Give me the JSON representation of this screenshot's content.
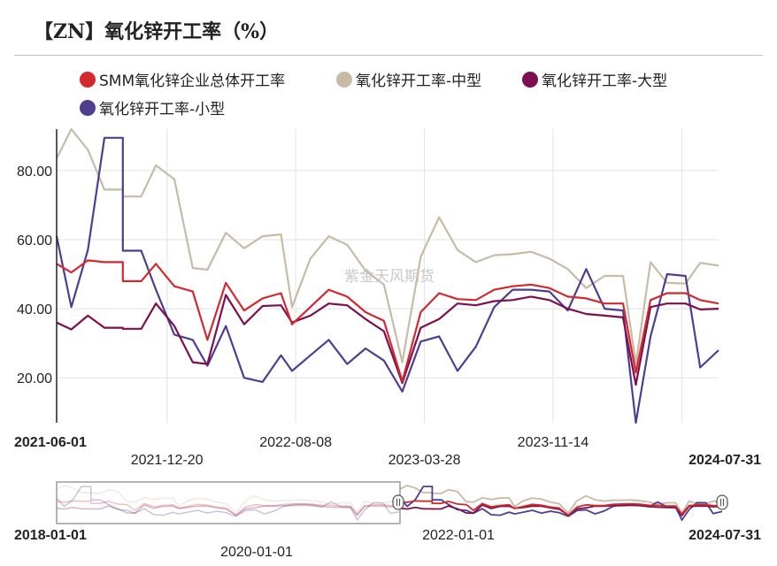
{
  "header": {
    "title": "【ZN】氧化锌开工率（%）"
  },
  "watermark": "紫金天风期货",
  "colors": {
    "total": "#d12a2e",
    "medium": "#c8bba6",
    "large": "#7e0e4f",
    "small": "#4f3d92",
    "grid": "#e2e2e2",
    "axis": "#222222",
    "navigator_frame": "#9b9b9b",
    "navigator_mask": "#ffffff"
  },
  "chart_data": {
    "type": "line",
    "x_ticks": [
      {
        "label": "2021-06-01",
        "index": 0,
        "bold": true
      },
      {
        "label": "2021-12-20",
        "index": 6,
        "bold": false
      },
      {
        "label": "2022-08-08",
        "index": 13,
        "bold": false
      },
      {
        "label": "2023-03-28",
        "index": 20,
        "bold": false
      },
      {
        "label": "2023-11-14",
        "index": 27,
        "bold": false
      },
      {
        "label": "2024-07-31",
        "index": 34,
        "bold": true
      }
    ],
    "y_ticks": [
      "20.00",
      "40.00",
      "60.00",
      "80.00"
    ],
    "y_tick_values": [
      20,
      40,
      60,
      80
    ],
    "ylim": [
      7,
      92
    ],
    "legend_position": "top",
    "grid": true,
    "series": [
      {
        "name": "SMM氧化锌企业总体开工率",
        "color_key": "total",
        "values": [
          [
            0,
            53
          ],
          [
            0.8,
            50.5
          ],
          [
            1.7,
            54
          ],
          [
            2.6,
            53.5
          ],
          [
            3.6,
            53.5
          ],
          [
            3.6,
            48
          ],
          [
            4.6,
            48
          ],
          [
            5.4,
            53
          ],
          [
            6.4,
            46.5
          ],
          [
            7.4,
            45
          ],
          [
            8.2,
            31
          ],
          [
            9.2,
            47.5
          ],
          [
            10.2,
            39.5
          ],
          [
            11.2,
            43
          ],
          [
            12.2,
            44.5
          ],
          [
            12.8,
            35.5
          ],
          [
            13.8,
            40.5
          ],
          [
            14.8,
            45.5
          ],
          [
            15.8,
            43.5
          ],
          [
            16.8,
            39
          ],
          [
            17.8,
            36.5
          ],
          [
            18.8,
            19
          ],
          [
            19.8,
            39
          ],
          [
            20.8,
            44.5
          ],
          [
            21.8,
            42.8
          ],
          [
            22.8,
            42.5
          ],
          [
            23.8,
            45.5
          ],
          [
            24.8,
            46.5
          ],
          [
            25.8,
            47
          ],
          [
            26.8,
            46
          ],
          [
            27.8,
            43.5
          ],
          [
            28.8,
            43
          ],
          [
            29.8,
            41.5
          ],
          [
            30.8,
            41.5
          ],
          [
            31.5,
            21.5
          ],
          [
            32.3,
            42.5
          ],
          [
            33.2,
            44.5
          ],
          [
            34.2,
            44.5
          ],
          [
            35,
            42.5
          ],
          [
            36,
            41.5
          ]
        ]
      },
      {
        "name": "氧化锌开工率-中型",
        "color_key": "medium",
        "values": [
          [
            0,
            83.5
          ],
          [
            0.8,
            92
          ],
          [
            1.7,
            86
          ],
          [
            2.6,
            74.5
          ],
          [
            3.6,
            74.5
          ],
          [
            3.6,
            72.5
          ],
          [
            4.6,
            72.5
          ],
          [
            5.4,
            81.5
          ],
          [
            6.4,
            77.5
          ],
          [
            7.4,
            51.8
          ],
          [
            8.2,
            51.3
          ],
          [
            9.2,
            62
          ],
          [
            10.2,
            57.5
          ],
          [
            11.2,
            61
          ],
          [
            12.2,
            61.5
          ],
          [
            12.8,
            40.5
          ],
          [
            13.8,
            54.5
          ],
          [
            14.8,
            61
          ],
          [
            15.8,
            58.5
          ],
          [
            16.8,
            51
          ],
          [
            17.8,
            47
          ],
          [
            18.8,
            24.5
          ],
          [
            19.8,
            55
          ],
          [
            20.8,
            66.5
          ],
          [
            21.8,
            57
          ],
          [
            22.8,
            53.5
          ],
          [
            23.8,
            55.5
          ],
          [
            24.8,
            55.8
          ],
          [
            25.8,
            56.5
          ],
          [
            26.8,
            54.5
          ],
          [
            27.8,
            51.5
          ],
          [
            28.8,
            46
          ],
          [
            29.8,
            49.5
          ],
          [
            30.8,
            49.5
          ],
          [
            31.5,
            24
          ],
          [
            32.3,
            53.5
          ],
          [
            33.2,
            47.5
          ],
          [
            34.2,
            47.3
          ],
          [
            35,
            53.3
          ],
          [
            36,
            52.5
          ]
        ]
      },
      {
        "name": "氧化锌开工率-大型",
        "color_key": "large",
        "values": [
          [
            0,
            36
          ],
          [
            0.8,
            34
          ],
          [
            1.7,
            38
          ],
          [
            2.6,
            34.5
          ],
          [
            3.6,
            34.5
          ],
          [
            3.6,
            34.2
          ],
          [
            4.6,
            34.2
          ],
          [
            5.4,
            41.5
          ],
          [
            6.4,
            35
          ],
          [
            7.4,
            24.5
          ],
          [
            8.2,
            24
          ],
          [
            9.2,
            44
          ],
          [
            10.2,
            35.5
          ],
          [
            11.2,
            40.8
          ],
          [
            12.2,
            41
          ],
          [
            12.8,
            36
          ],
          [
            13.8,
            38
          ],
          [
            14.8,
            41.5
          ],
          [
            15.8,
            41
          ],
          [
            16.8,
            37
          ],
          [
            17.8,
            33.5
          ],
          [
            18.8,
            18.5
          ],
          [
            19.8,
            34.5
          ],
          [
            20.8,
            37
          ],
          [
            21.8,
            41.5
          ],
          [
            22.8,
            41
          ],
          [
            23.8,
            42.2
          ],
          [
            24.8,
            42.5
          ],
          [
            25.8,
            43.5
          ],
          [
            26.8,
            42.5
          ],
          [
            27.8,
            40
          ],
          [
            28.8,
            38.5
          ],
          [
            29.8,
            38
          ],
          [
            30.8,
            37.5
          ],
          [
            31.5,
            18
          ],
          [
            32.3,
            40.5
          ],
          [
            33.2,
            41.5
          ],
          [
            34.2,
            41.5
          ],
          [
            35,
            39.8
          ],
          [
            36,
            40
          ]
        ]
      },
      {
        "name": "氧化锌开工率-小型",
        "color_key": "small",
        "values": [
          [
            0,
            61
          ],
          [
            0.8,
            40.5
          ],
          [
            1.7,
            57
          ],
          [
            2.6,
            89.5
          ],
          [
            3.6,
            89.5
          ],
          [
            3.6,
            56.8
          ],
          [
            4.6,
            56.8
          ],
          [
            5.4,
            45.5
          ],
          [
            6.4,
            32.5
          ],
          [
            7.4,
            31
          ],
          [
            8.2,
            23.5
          ],
          [
            9.2,
            35
          ],
          [
            10.2,
            20
          ],
          [
            11.2,
            18.8
          ],
          [
            12.2,
            26.5
          ],
          [
            12.8,
            22
          ],
          [
            13.8,
            26.5
          ],
          [
            14.8,
            31
          ],
          [
            15.8,
            24
          ],
          [
            16.8,
            28.5
          ],
          [
            17.8,
            25
          ],
          [
            18.8,
            16
          ],
          [
            19.8,
            30.5
          ],
          [
            20.8,
            32
          ],
          [
            21.8,
            22
          ],
          [
            22.8,
            29
          ],
          [
            23.8,
            40.5
          ],
          [
            24.8,
            45.5
          ],
          [
            25.8,
            45.5
          ],
          [
            26.8,
            45
          ],
          [
            27.8,
            39.5
          ],
          [
            28.8,
            51.5
          ],
          [
            29.8,
            40
          ],
          [
            30.8,
            39.5
          ],
          [
            31.5,
            7
          ],
          [
            32.3,
            32
          ],
          [
            33.2,
            50
          ],
          [
            34.2,
            49.5
          ],
          [
            35,
            23
          ],
          [
            36,
            28
          ]
        ]
      }
    ],
    "navigator": {
      "tick_labels": [
        {
          "label": "2018-01-01",
          "bold": true
        },
        {
          "label": "2020-01-01",
          "bold": false
        },
        {
          "label": "2022-01-01",
          "bold": false
        },
        {
          "label": "2024-07-31",
          "bold": true
        }
      ]
    }
  }
}
